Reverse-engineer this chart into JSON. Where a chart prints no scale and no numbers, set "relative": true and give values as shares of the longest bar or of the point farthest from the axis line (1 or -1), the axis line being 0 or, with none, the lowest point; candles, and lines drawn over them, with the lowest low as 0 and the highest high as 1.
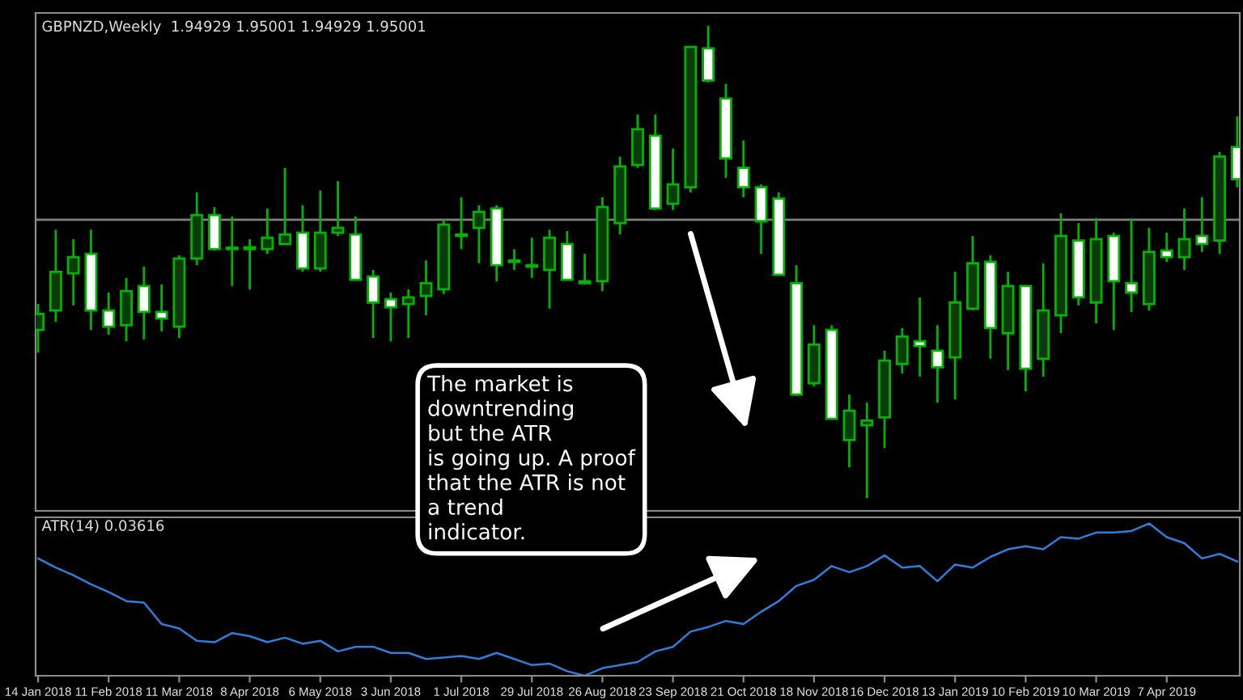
{
  "chart_data": [
    {
      "type": "candlestick",
      "title": "GBPNZD,Weekly  1.94929 1.95001 1.94929 1.95001",
      "relative": true,
      "tick_labels": false,
      "color": "#00b400",
      "xlim": [
        "2018-01-13",
        "2019-05-06"
      ],
      "x": [
        "2018-01-14",
        "2018-01-21",
        "2018-01-28",
        "2018-02-04",
        "2018-02-11",
        "2018-02-18",
        "2018-02-25",
        "2018-03-04",
        "2018-03-11",
        "2018-03-18",
        "2018-03-25",
        "2018-04-01",
        "2018-04-08",
        "2018-04-15",
        "2018-04-22",
        "2018-04-29",
        "2018-05-06",
        "2018-05-13",
        "2018-05-20",
        "2018-05-27",
        "2018-06-03",
        "2018-06-10",
        "2018-06-17",
        "2018-06-24",
        "2018-07-01",
        "2018-07-08",
        "2018-07-15",
        "2018-07-22",
        "2018-07-29",
        "2018-08-05",
        "2018-08-12",
        "2018-08-19",
        "2018-08-26",
        "2018-09-02",
        "2018-09-09",
        "2018-09-16",
        "2018-09-23",
        "2018-09-30",
        "2018-10-07",
        "2018-10-14",
        "2018-10-21",
        "2018-10-28",
        "2018-11-04",
        "2018-11-11",
        "2018-11-18",
        "2018-11-25",
        "2018-12-02",
        "2018-12-09",
        "2018-12-16",
        "2018-12-23",
        "2018-12-30",
        "2019-01-06",
        "2019-01-13",
        "2019-01-20",
        "2019-01-27",
        "2019-02-03",
        "2019-02-10",
        "2019-02-17",
        "2019-02-24",
        "2019-03-03",
        "2019-03-10",
        "2019-03-17",
        "2019-03-24",
        "2019-03-31",
        "2019-04-07",
        "2019-04-14",
        "2019-04-21",
        "2019-04-28",
        "2019-05-05"
      ],
      "ohlc": [
        [
          0.356,
          0.411,
          0.308,
          0.39
        ],
        [
          0.397,
          0.568,
          0.373,
          0.479
        ],
        [
          0.476,
          0.548,
          0.408,
          0.51
        ],
        [
          0.517,
          0.568,
          0.356,
          0.397
        ],
        [
          0.397,
          0.435,
          0.346,
          0.363
        ],
        [
          0.366,
          0.466,
          0.332,
          0.438
        ],
        [
          0.449,
          0.49,
          0.336,
          0.394
        ],
        [
          0.394,
          0.452,
          0.353,
          0.38
        ],
        [
          0.363,
          0.514,
          0.339,
          0.507
        ],
        [
          0.507,
          0.647,
          0.493,
          0.599
        ],
        [
          0.599,
          0.616,
          0.524,
          0.527
        ],
        [
          0.527,
          0.596,
          0.449,
          0.527
        ],
        [
          0.531,
          0.548,
          0.442,
          0.527
        ],
        [
          0.527,
          0.613,
          0.517,
          0.551
        ],
        [
          0.538,
          0.699,
          0.538,
          0.558
        ],
        [
          0.562,
          0.62,
          0.479,
          0.486
        ],
        [
          0.486,
          0.651,
          0.479,
          0.562
        ],
        [
          0.562,
          0.671,
          0.555,
          0.572
        ],
        [
          0.558,
          0.596,
          0.462,
          0.462
        ],
        [
          0.469,
          0.483,
          0.339,
          0.414
        ],
        [
          0.421,
          0.435,
          0.332,
          0.404
        ],
        [
          0.411,
          0.442,
          0.339,
          0.425
        ],
        [
          0.428,
          0.503,
          0.387,
          0.455
        ],
        [
          0.442,
          0.589,
          0.432,
          0.579
        ],
        [
          0.555,
          0.637,
          0.527,
          0.558
        ],
        [
          0.572,
          0.62,
          0.497,
          0.606
        ],
        [
          0.613,
          0.62,
          0.459,
          0.493
        ],
        [
          0.503,
          0.527,
          0.483,
          0.5
        ],
        [
          0.493,
          0.551,
          0.466,
          0.49
        ],
        [
          0.483,
          0.568,
          0.401,
          0.551
        ],
        [
          0.538,
          0.565,
          0.462,
          0.462
        ],
        [
          0.455,
          0.517,
          0.452,
          0.459
        ],
        [
          0.459,
          0.637,
          0.438,
          0.616
        ],
        [
          0.582,
          0.723,
          0.558,
          0.702
        ],
        [
          0.705,
          0.812,
          0.699,
          0.781
        ],
        [
          0.767,
          0.812,
          0.61,
          0.613
        ],
        [
          0.623,
          0.74,
          0.61,
          0.664
        ],
        [
          0.658,
          0.955,
          0.647,
          0.955
        ],
        [
          0.952,
          1,
          0.88,
          0.884
        ],
        [
          0.846,
          0.877,
          0.678,
          0.719
        ],
        [
          0.699,
          0.757,
          0.637,
          0.658
        ],
        [
          0.658,
          0.664,
          0.517,
          0.586
        ],
        [
          0.634,
          0.647,
          0.473,
          0.473
        ],
        [
          0.455,
          0.493,
          0.216,
          0.219
        ],
        [
          0.243,
          0.366,
          0.236,
          0.325
        ],
        [
          0.356,
          0.366,
          0.168,
          0.168
        ],
        [
          0.123,
          0.219,
          0.065,
          0.185
        ],
        [
          0.154,
          0.202,
          0,
          0.164
        ],
        [
          0.171,
          0.312,
          0.106,
          0.291
        ],
        [
          0.284,
          0.36,
          0.264,
          0.342
        ],
        [
          0.332,
          0.425,
          0.257,
          0.322
        ],
        [
          0.312,
          0.366,
          0.202,
          0.277
        ],
        [
          0.298,
          0.479,
          0.209,
          0.414
        ],
        [
          0.401,
          0.555,
          0.397,
          0.497
        ],
        [
          0.5,
          0.514,
          0.295,
          0.36
        ],
        [
          0.349,
          0.479,
          0.271,
          0.449
        ],
        [
          0.449,
          0.449,
          0.226,
          0.274
        ],
        [
          0.295,
          0.497,
          0.257,
          0.397
        ],
        [
          0.387,
          0.603,
          0.349,
          0.555
        ],
        [
          0.545,
          0.582,
          0.408,
          0.425
        ],
        [
          0.414,
          0.592,
          0.37,
          0.548
        ],
        [
          0.555,
          0.562,
          0.356,
          0.459
        ],
        [
          0.455,
          0.592,
          0.394,
          0.435
        ],
        [
          0.411,
          0.572,
          0.397,
          0.521
        ],
        [
          0.524,
          0.562,
          0.5,
          0.51
        ],
        [
          0.51,
          0.613,
          0.483,
          0.548
        ],
        [
          0.555,
          0.637,
          0.521,
          0.538
        ],
        [
          0.545,
          0.733,
          0.517,
          0.723
        ],
        [
          0.743,
          0.808,
          0.658,
          0.675
        ]
      ],
      "ref_lines": [
        {
          "axis": "y",
          "value": 0.589,
          "color": "#808080"
        }
      ],
      "annotations": [
        "The market is\ndowntrending\nbut the ATR\nis going up. A proof\nthat the ATR is not\na trend\nindicator."
      ]
    },
    {
      "type": "line",
      "title": "ATR(14) 0.03616",
      "relative": true,
      "tick_labels": "x",
      "xlim": [
        "2018-01-13",
        "2019-05-06"
      ],
      "x": [
        "2018-01-14",
        "2018-01-21",
        "2018-01-28",
        "2018-02-04",
        "2018-02-11",
        "2018-02-18",
        "2018-02-25",
        "2018-03-04",
        "2018-03-11",
        "2018-03-18",
        "2018-03-25",
        "2018-04-01",
        "2018-04-08",
        "2018-04-15",
        "2018-04-22",
        "2018-04-29",
        "2018-05-06",
        "2018-05-13",
        "2018-05-20",
        "2018-05-27",
        "2018-06-03",
        "2018-06-10",
        "2018-06-17",
        "2018-06-24",
        "2018-07-01",
        "2018-07-08",
        "2018-07-15",
        "2018-07-22",
        "2018-07-29",
        "2018-08-05",
        "2018-08-12",
        "2018-08-19",
        "2018-08-26",
        "2018-09-02",
        "2018-09-09",
        "2018-09-16",
        "2018-09-23",
        "2018-09-30",
        "2018-10-07",
        "2018-10-14",
        "2018-10-21",
        "2018-10-28",
        "2018-11-04",
        "2018-11-11",
        "2018-11-18",
        "2018-11-25",
        "2018-12-02",
        "2018-12-09",
        "2018-12-16",
        "2018-12-23",
        "2018-12-30",
        "2019-01-06",
        "2019-01-13",
        "2019-01-20",
        "2019-01-27",
        "2019-02-03",
        "2019-02-10",
        "2019-02-17",
        "2019-02-24",
        "2019-03-03",
        "2019-03-10",
        "2019-03-17",
        "2019-03-24",
        "2019-03-31",
        "2019-04-07",
        "2019-04-14",
        "2019-04-21",
        "2019-04-28",
        "2019-05-05"
      ],
      "xticks": [
        {
          "value": "2018-01-14",
          "label": "14 Jan 2018"
        },
        {
          "value": "2018-02-11",
          "label": "11 Feb 2018"
        },
        {
          "value": "2018-03-11",
          "label": "11 Mar 2018"
        },
        {
          "value": "2018-04-08",
          "label": "8 Apr 2018"
        },
        {
          "value": "2018-05-06",
          "label": "6 May 2018"
        },
        {
          "value": "2018-06-03",
          "label": "3 Jun 2018"
        },
        {
          "value": "2018-07-01",
          "label": "1 Jul 2018"
        },
        {
          "value": "2018-07-29",
          "label": "29 Jul 2018"
        },
        {
          "value": "2018-08-26",
          "label": "26 Aug 2018"
        },
        {
          "value": "2018-09-23",
          "label": "23 Sep 2018"
        },
        {
          "value": "2018-10-21",
          "label": "21 Oct 2018"
        },
        {
          "value": "2018-11-18",
          "label": "18 Nov 2018"
        },
        {
          "value": "2018-12-16",
          "label": "16 Dec 2018"
        },
        {
          "value": "2019-01-13",
          "label": "13 Jan 2019"
        },
        {
          "value": "2019-02-10",
          "label": "10 Feb 2019"
        },
        {
          "value": "2019-03-10",
          "label": "10 Mar 2019"
        },
        {
          "value": "2019-04-07",
          "label": "7 Apr 2019"
        }
      ],
      "series": [
        {
          "color": "#2f7ed8",
          "values": [
            0.77,
            0.71,
            0.66,
            0.6,
            0.55,
            0.49,
            0.48,
            0.34,
            0.31,
            0.23,
            0.22,
            0.28,
            0.26,
            0.22,
            0.25,
            0.21,
            0.23,
            0.16,
            0.19,
            0.19,
            0.15,
            0.15,
            0.11,
            0.12,
            0.13,
            0.11,
            0.15,
            0.11,
            0.07,
            0.08,
            0.03,
            0,
            0.05,
            0.07,
            0.09,
            0.16,
            0.19,
            0.29,
            0.32,
            0.36,
            0.34,
            0.42,
            0.49,
            0.59,
            0.63,
            0.72,
            0.68,
            0.72,
            0.79,
            0.71,
            0.72,
            0.62,
            0.73,
            0.71,
            0.78,
            0.83,
            0.85,
            0.83,
            0.91,
            0.9,
            0.94,
            0.94,
            0.95,
            1,
            0.91,
            0.87,
            0.77,
            0.8,
            0.75
          ]
        }
      ]
    }
  ]
}
